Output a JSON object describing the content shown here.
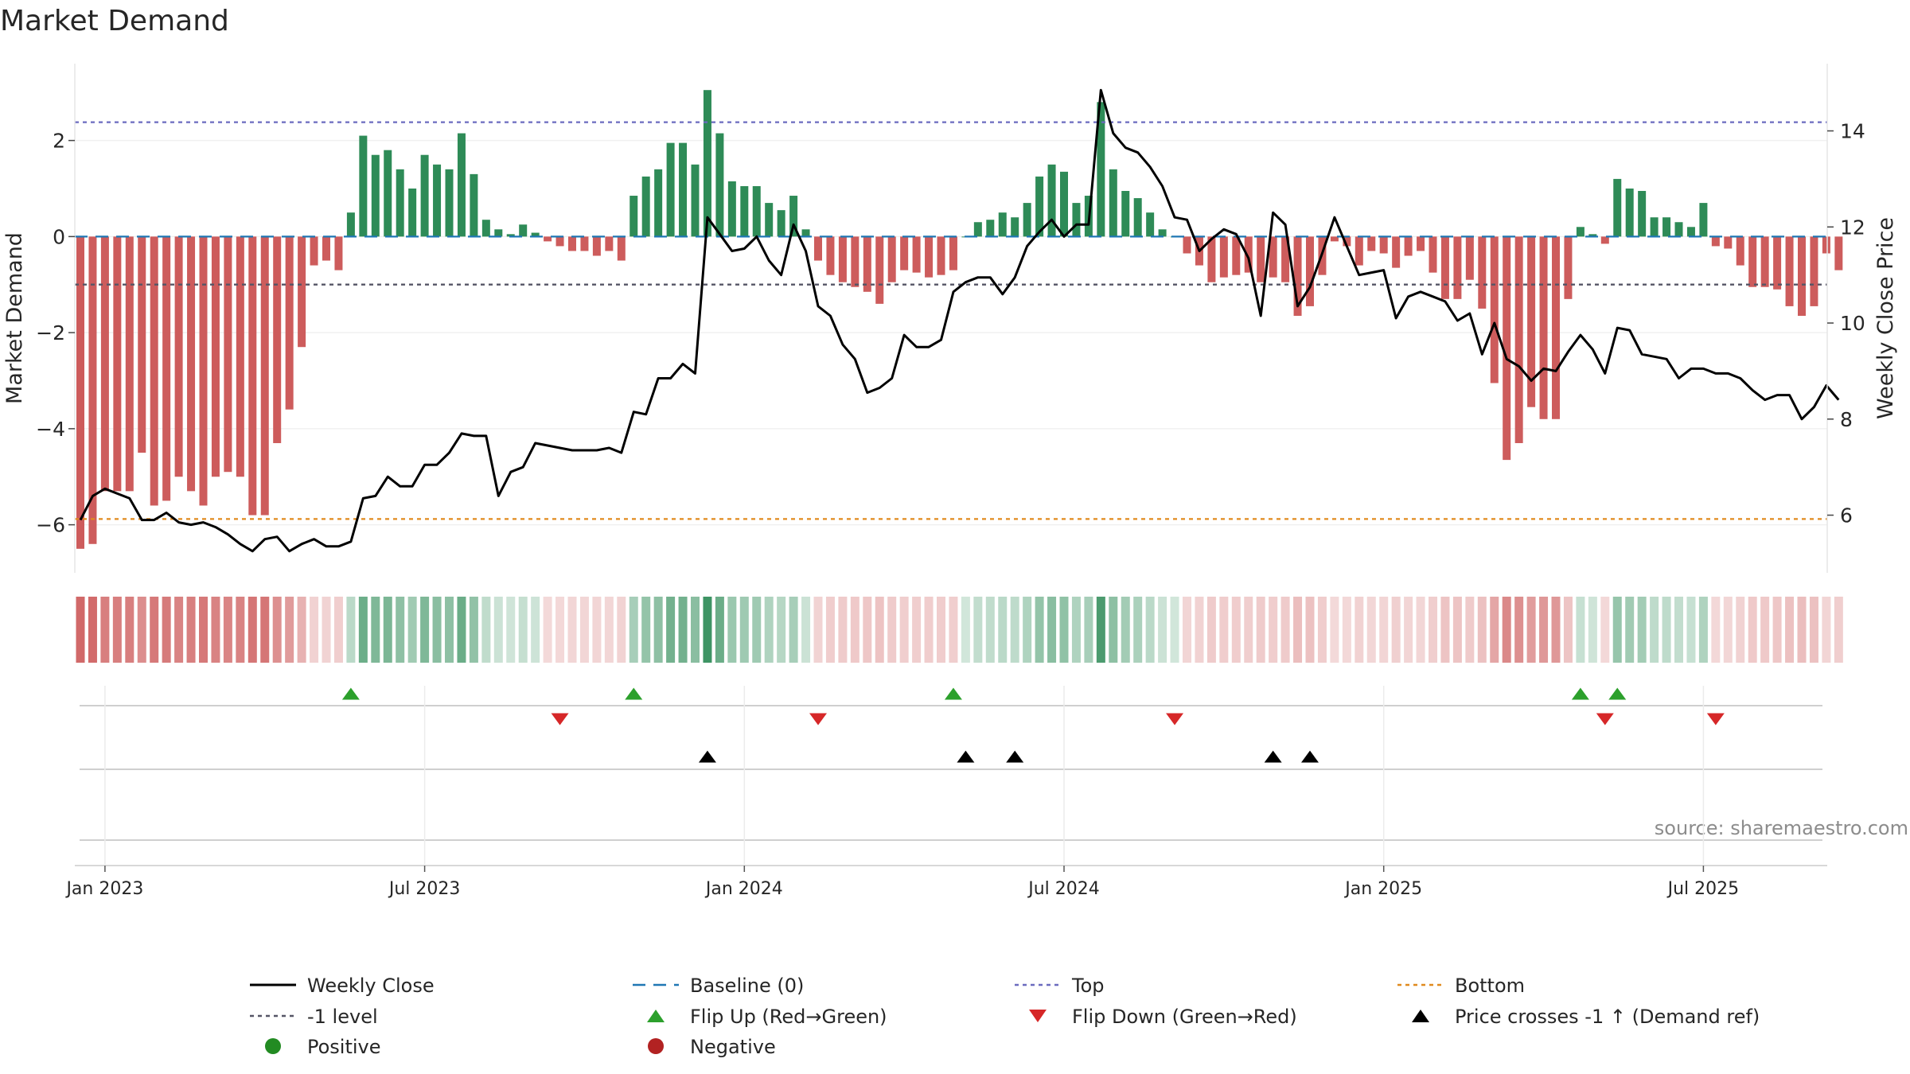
{
  "chart_data": {
    "type": "bar",
    "title": "Market Demand",
    "ylabel_left": "Market Demand",
    "ylabel_right": "Weekly Close Price",
    "ylim_left": [
      -7.0,
      3.6
    ],
    "ylim_right": [
      4.8,
      15.4
    ],
    "yticks_left": [
      2,
      0,
      -2,
      -4,
      -6
    ],
    "yticks_left_labels": [
      "2",
      "0",
      "−2",
      "−4",
      "−6"
    ],
    "yticks_right": [
      14,
      12,
      10,
      8,
      6
    ],
    "yticks_right_labels": [
      "14",
      "12",
      "10",
      "8",
      "6"
    ],
    "x_labels": [
      "Jan 2023",
      "Jul 2023",
      "Jan 2024",
      "Jul 2024",
      "Jan 2025",
      "Jul 2025"
    ],
    "x_label_week_index": [
      2,
      28,
      54,
      80,
      106,
      132
    ],
    "ref_lines": {
      "top": 2.38,
      "bottom": -5.88,
      "minus_one": -1.0,
      "baseline": 0
    },
    "colors": {
      "positive": "#2e8b57",
      "negative": "#cd5c5c",
      "top": "#6b6bbf",
      "bottom": "#e08a1e",
      "minus_one": "#555566",
      "baseline": "#1f77b4",
      "close": "#000000",
      "flip_up": "#2ca02c",
      "flip_down": "#d62728",
      "cross": "#000000"
    },
    "series": [
      {
        "name": "Market Demand",
        "values": [
          -6.5,
          -6.4,
          -5.3,
          -5.3,
          -5.3,
          -4.5,
          -5.6,
          -5.5,
          -5.0,
          -5.3,
          -5.6,
          -5.0,
          -4.9,
          -5.0,
          -5.8,
          -5.8,
          -4.3,
          -3.6,
          -2.3,
          -0.6,
          -0.5,
          -0.7,
          0.5,
          2.1,
          1.7,
          1.8,
          1.4,
          1.0,
          1.7,
          1.5,
          1.4,
          2.15,
          1.3,
          0.35,
          0.15,
          0.05,
          0.25,
          0.08,
          -0.1,
          -0.2,
          -0.3,
          -0.3,
          -0.4,
          -0.3,
          -0.5,
          0.85,
          1.25,
          1.4,
          1.95,
          1.95,
          1.5,
          3.05,
          2.15,
          1.15,
          1.05,
          1.05,
          0.7,
          0.55,
          0.85,
          0.15,
          -0.5,
          -0.8,
          -0.95,
          -1.05,
          -1.15,
          -1.4,
          -0.95,
          -0.7,
          -0.75,
          -0.85,
          -0.8,
          -0.7,
          0.0,
          0.3,
          0.35,
          0.5,
          0.4,
          0.7,
          1.25,
          1.5,
          1.35,
          0.7,
          0.85,
          2.8,
          1.4,
          0.95,
          0.8,
          0.5,
          0.15,
          0.0,
          -0.35,
          -0.6,
          -0.95,
          -0.85,
          -0.8,
          -0.75,
          -0.95,
          -0.85,
          -0.95,
          -1.65,
          -1.45,
          -0.8,
          -0.1,
          -0.2,
          -0.6,
          -0.3,
          -0.35,
          -0.65,
          -0.4,
          -0.3,
          -0.75,
          -1.3,
          -1.3,
          -0.9,
          -1.5,
          -3.05,
          -4.65,
          -4.3,
          -3.55,
          -3.8,
          -3.8,
          -1.3,
          0.2,
          0.05,
          -0.15,
          1.2,
          1.0,
          0.95,
          0.4,
          0.4,
          0.3,
          0.2,
          0.7,
          -0.2,
          -0.25,
          -0.6,
          -1.05,
          -1.05,
          -1.1,
          -1.45,
          -1.65,
          -1.45,
          -0.35,
          -0.7
        ]
      },
      {
        "name": "Weekly Close",
        "values": [
          5.9,
          6.4,
          6.55,
          6.45,
          6.35,
          5.9,
          5.9,
          6.05,
          5.85,
          5.8,
          5.85,
          5.75,
          5.6,
          5.4,
          5.25,
          5.5,
          5.55,
          5.25,
          5.4,
          5.5,
          5.35,
          5.35,
          5.45,
          6.35,
          6.4,
          6.8,
          6.6,
          6.6,
          7.05,
          7.05,
          7.3,
          7.7,
          7.65,
          7.65,
          6.4,
          6.9,
          7.0,
          7.5,
          7.45,
          7.4,
          7.35,
          7.35,
          7.35,
          7.4,
          7.3,
          8.15,
          8.1,
          8.85,
          8.85,
          9.15,
          8.95,
          12.2,
          11.85,
          11.5,
          11.55,
          11.8,
          11.3,
          11.0,
          12.05,
          11.5,
          10.35,
          10.15,
          9.55,
          9.25,
          8.55,
          8.65,
          8.85,
          9.75,
          9.5,
          9.5,
          9.65,
          10.65,
          10.85,
          10.95,
          10.95,
          10.6,
          10.95,
          11.6,
          11.9,
          12.15,
          11.8,
          12.05,
          12.05,
          14.85,
          13.95,
          13.65,
          13.55,
          13.25,
          12.85,
          12.2,
          12.15,
          11.5,
          11.75,
          11.95,
          11.85,
          11.35,
          10.15,
          12.3,
          12.05,
          10.35,
          10.75,
          11.45,
          12.2,
          11.6,
          11.0,
          11.05,
          11.1,
          10.1,
          10.55,
          10.65,
          10.55,
          10.45,
          10.05,
          10.2,
          9.35,
          10.0,
          9.25,
          9.1,
          8.8,
          9.05,
          9.0,
          9.4,
          9.75,
          9.45,
          8.95,
          9.9,
          9.85,
          9.35,
          9.3,
          9.25,
          8.85,
          9.05,
          9.05,
          8.95,
          8.95,
          8.85,
          8.6,
          8.4,
          8.5,
          8.5,
          8.0,
          8.25,
          8.7,
          8.4
        ]
      }
    ],
    "flip_up_weeks": [
      22,
      45,
      71,
      122,
      125
    ],
    "flip_down_weeks": [
      39,
      60,
      89,
      124,
      133
    ],
    "cross_weeks": [
      51,
      72,
      76,
      97,
      100
    ],
    "source": "source: sharemaestro.com",
    "legend": {
      "placement": "bottom",
      "items": [
        {
          "key": "close",
          "label": "Weekly Close"
        },
        {
          "key": "baseline",
          "label": "Baseline (0)"
        },
        {
          "key": "top",
          "label": "Top"
        },
        {
          "key": "bottom",
          "label": "Bottom"
        },
        {
          "key": "minus_one",
          "label": "-1 level"
        },
        {
          "key": "flip_up",
          "label": "Flip Up (Red→Green)"
        },
        {
          "key": "flip_down",
          "label": "Flip Down (Green→Red)"
        },
        {
          "key": "cross",
          "label": "Price crosses -1 ↑ (Demand ref)"
        },
        {
          "key": "positive",
          "label": "Positive"
        },
        {
          "key": "negative",
          "label": "Negative"
        }
      ]
    }
  }
}
